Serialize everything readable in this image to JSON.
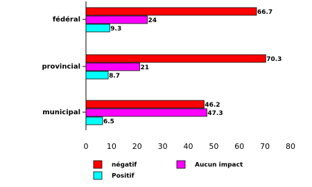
{
  "chart_data": {
    "type": "bar",
    "orientation": "horizontal",
    "categories": [
      "fédéral",
      "provincial",
      "municipal"
    ],
    "series": [
      {
        "name": "négatif",
        "color": "#ff0000",
        "values": [
          66.7,
          70.3,
          46.2
        ]
      },
      {
        "name": "Aucun impact",
        "color": "#ff00ff",
        "values": [
          24,
          21,
          47.3
        ]
      },
      {
        "name": "Positif",
        "color": "#00ffff",
        "values": [
          9.3,
          8.7,
          6.5
        ]
      }
    ],
    "xlim": [
      0,
      80
    ],
    "xticks": [
      0,
      10,
      20,
      30,
      40,
      50,
      60,
      70,
      80
    ]
  }
}
